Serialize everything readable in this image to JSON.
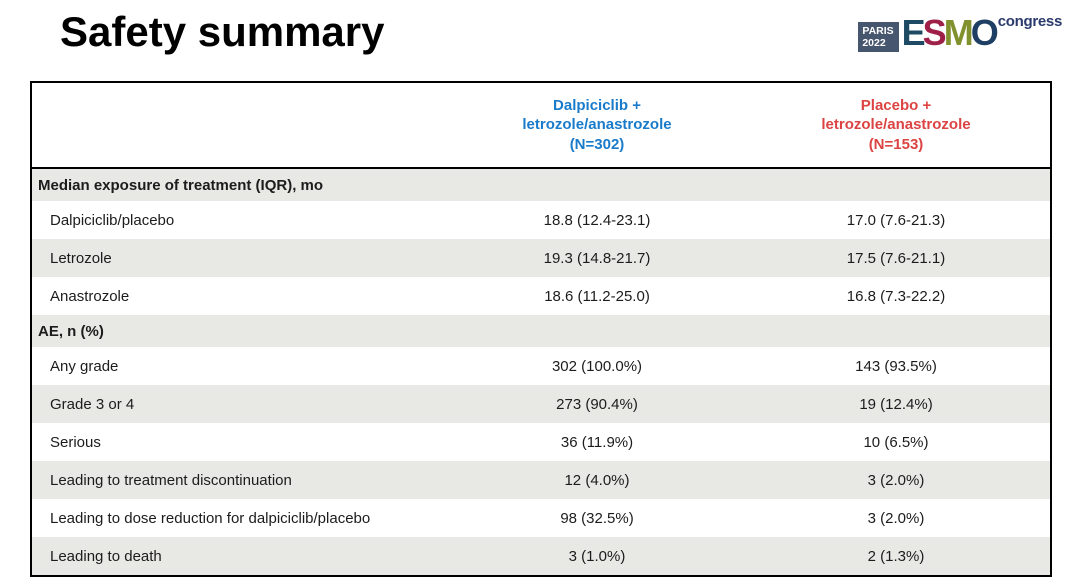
{
  "title": "Safety summary",
  "logo": {
    "box_line1": "PARIS",
    "box_line2": "2022",
    "letters": [
      {
        "ch": "E",
        "color": "#1e4a63"
      },
      {
        "ch": "S",
        "color": "#9e2048"
      },
      {
        "ch": "M",
        "color": "#81912d"
      },
      {
        "ch": "O",
        "color": "#1e3f63"
      }
    ],
    "congress": "congress",
    "box_color": "#47566f",
    "congress_color": "#2b3a6d"
  },
  "colors": {
    "arm1_header": "#1a7bca",
    "arm2_header": "#dc4343",
    "shaded_row": "#e8e8e5",
    "table_border": "#000000"
  },
  "table": {
    "columns": [
      {
        "label": ""
      },
      {
        "label": "Dalpiciclib +\nletrozole/anastrozole\n(N=302)",
        "color": "#1a7bca"
      },
      {
        "label": "Placebo +\nletrozole/anastrozole\n(N=153)",
        "color": "#dc4343"
      }
    ],
    "rows": [
      {
        "type": "section",
        "label": "Median exposure of treatment (IQR), mo",
        "shaded": true
      },
      {
        "type": "data",
        "label": "Dalpiciclib/placebo",
        "arm1": "18.8 (12.4-23.1)",
        "arm2": "17.0 (7.6-21.3)",
        "shaded": false
      },
      {
        "type": "data",
        "label": "Letrozole",
        "arm1": "19.3 (14.8-21.7)",
        "arm2": "17.5 (7.6-21.1)",
        "shaded": true
      },
      {
        "type": "data",
        "label": "Anastrozole",
        "arm1": "18.6 (11.2-25.0)",
        "arm2": "16.8 (7.3-22.2)",
        "shaded": false
      },
      {
        "type": "section",
        "label": "AE, n (%)",
        "shaded": true
      },
      {
        "type": "data",
        "label": "Any grade",
        "arm1": "302 (100.0%)",
        "arm2": "143 (93.5%)",
        "shaded": false
      },
      {
        "type": "data",
        "label": "Grade 3 or 4",
        "arm1": "273 (90.4%)",
        "arm2": "19 (12.4%)",
        "shaded": true
      },
      {
        "type": "data",
        "label": "Serious",
        "arm1": "36 (11.9%)",
        "arm2": "10 (6.5%)",
        "shaded": false
      },
      {
        "type": "data",
        "label": "Leading to treatment discontinuation",
        "arm1": "12 (4.0%)",
        "arm2": "3 (2.0%)",
        "shaded": true
      },
      {
        "type": "data",
        "label": "Leading to dose reduction for dalpiciclib/placebo",
        "arm1": "98 (32.5%)",
        "arm2": "3 (2.0%)",
        "shaded": false
      },
      {
        "type": "data",
        "label": "Leading to death",
        "arm1": "3 (1.0%)",
        "arm2": "2 (1.3%)",
        "shaded": true
      }
    ]
  }
}
